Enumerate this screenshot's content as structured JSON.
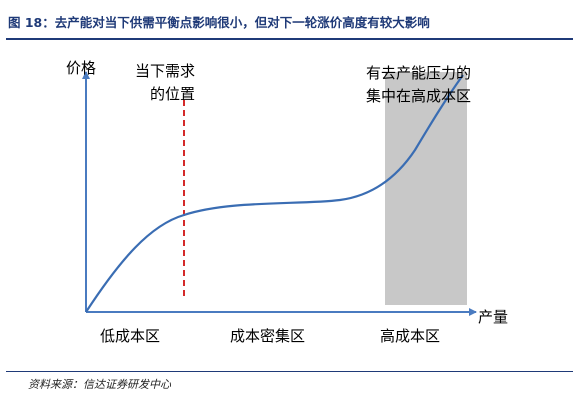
{
  "figure": {
    "title": "图 18：去产能对当下供需平衡点影响很小，但对下一轮涨价高度有较大影响",
    "source": "资料来源：信达证券研发中心"
  },
  "diagram": {
    "y_axis_label": "价格",
    "x_axis_label": "产量",
    "current_position_label": [
      "当下需求",
      "的位置"
    ],
    "high_cost_zone_label": [
      "有去产能压力的",
      "集中在高成本区"
    ],
    "zone_labels": [
      "低成本区",
      "成本密集区",
      "高成本区"
    ],
    "colors": {
      "title": "#1f3a78",
      "axis": "#4a7bc0",
      "curve": "#3a6db3",
      "demand_line": "#d42a2a",
      "high_cost_zone": "#c8c8c8"
    }
  }
}
